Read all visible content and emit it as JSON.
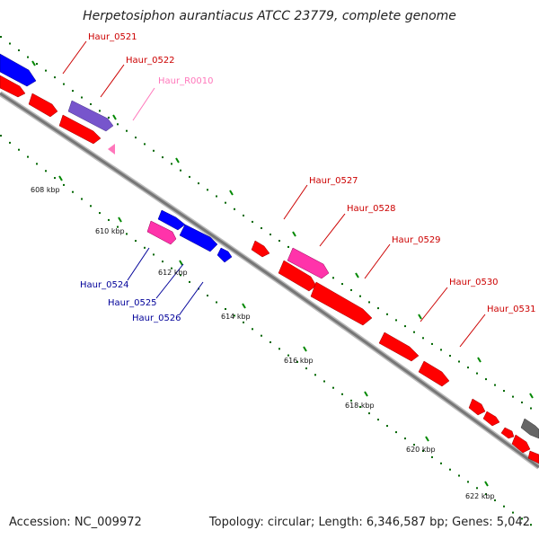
{
  "title": "Herpetosiphon aurantiacus ATCC 23779, complete genome",
  "footer": {
    "accession": "Accession: NC_009972",
    "summary": "Topology: circular; Length: 6,346,587 bp; Genes: 5,042"
  },
  "colors": {
    "forward_cds": "#ff0000",
    "reverse_cds": "#0000ff",
    "forward_rna": "#ff33aa",
    "reverse_highlight": "#7755cc",
    "backbone": "#888888",
    "dots": "#006600",
    "red_label": "#cc0000",
    "blue_label": "#000099",
    "pink_label": "#ff77bb"
  },
  "ticks": [
    {
      "label": "608 kbp"
    },
    {
      "label": "610 kbp"
    },
    {
      "label": "612 kbp"
    },
    {
      "label": "614 kbp"
    },
    {
      "label": "616 kbp"
    },
    {
      "label": "618 kbp"
    },
    {
      "label": "620 kbp"
    },
    {
      "label": "622 kbp"
    }
  ],
  "gene_labels": [
    {
      "text": "Haur_0521",
      "color": "#cc0000"
    },
    {
      "text": "Haur_0522",
      "color": "#cc0000"
    },
    {
      "text": "Haur_R0010",
      "color": "#ff77bb"
    },
    {
      "text": "Haur_0527",
      "color": "#cc0000"
    },
    {
      "text": "Haur_0528",
      "color": "#cc0000"
    },
    {
      "text": "Haur_0529",
      "color": "#cc0000"
    },
    {
      "text": "Haur_0530",
      "color": "#cc0000"
    },
    {
      "text": "Haur_0531",
      "color": "#cc0000"
    },
    {
      "text": "Haur_0524",
      "color": "#000099"
    },
    {
      "text": "Haur_0525",
      "color": "#000099"
    },
    {
      "text": "Haur_0526",
      "color": "#000099"
    }
  ]
}
